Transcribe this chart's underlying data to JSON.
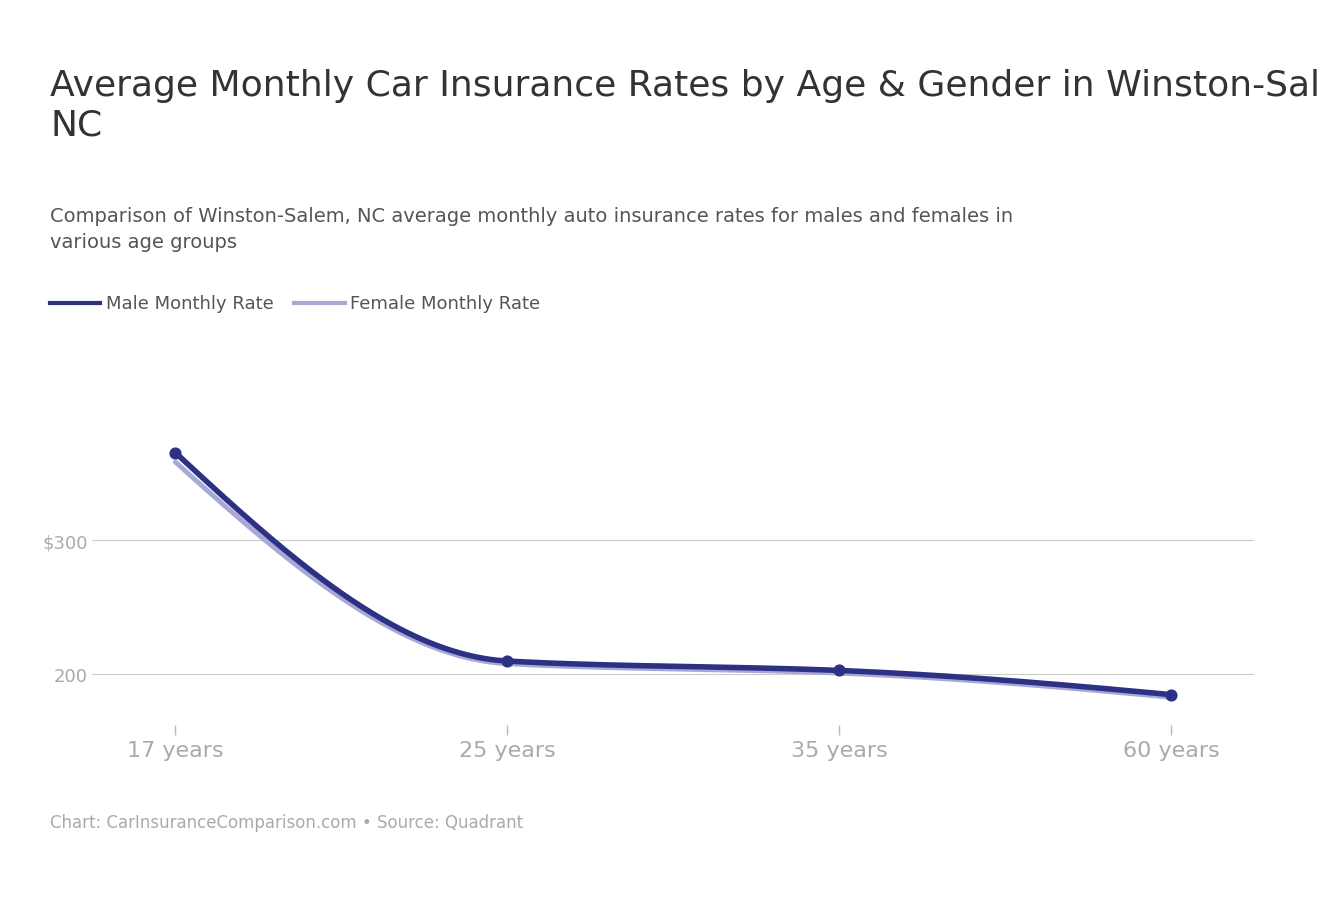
{
  "title": "Average Monthly Car Insurance Rates by Age & Gender in Winston-Salem,\nNC",
  "subtitle": "Comparison of Winston-Salem, NC average monthly auto insurance rates for males and females in\nvarious age groups",
  "footer": "Chart: CarInsuranceComparison.com • Source: Quadrant",
  "age_indices": [
    0,
    1,
    2,
    3
  ],
  "age_labels": [
    "17 years",
    "25 years",
    "35 years",
    "60 years"
  ],
  "male_rates": [
    365,
    210,
    203,
    185
  ],
  "female_rates": [
    358,
    208,
    201,
    183
  ],
  "male_color": "#2d3183",
  "female_color": "#a8a8d8",
  "background_color": "#ffffff",
  "grid_color": "#cccccc",
  "ytick_labels": [
    "$300",
    "200"
  ],
  "ytick_values": [
    300,
    200
  ],
  "legend_male": "Male Monthly Rate",
  "legend_female": "Female Monthly Rate",
  "title_fontsize": 26,
  "subtitle_fontsize": 14,
  "footer_fontsize": 12,
  "legend_fontsize": 13,
  "ytick_fontsize": 13,
  "xtick_fontsize": 16,
  "top_line_color": "#cccccc",
  "bot_line_color": "#cccccc"
}
